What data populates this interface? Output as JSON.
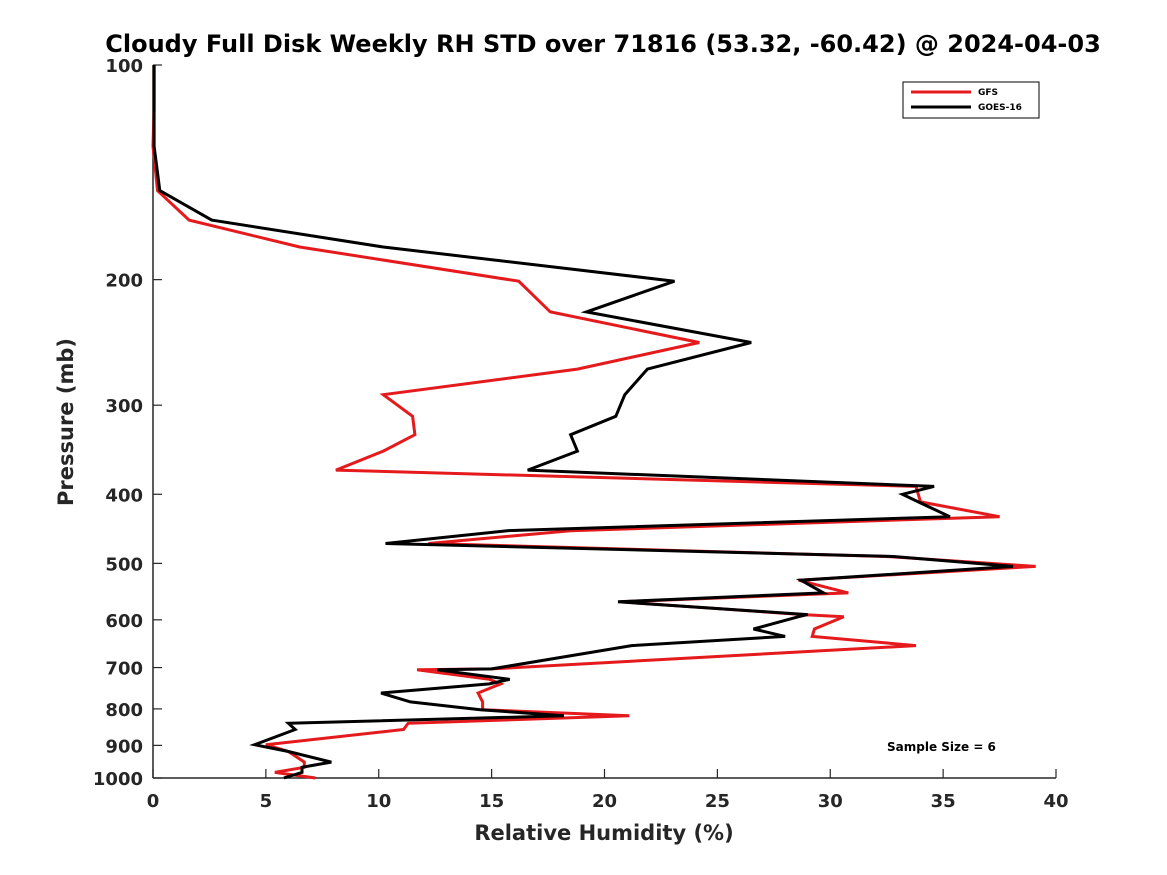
{
  "chart_data": {
    "type": "line",
    "title": "Cloudy Full Disk Weekly RH STD over 71816 (53.32, -60.42) @ 2024-04-03",
    "xlabel": "Relative Humidity (%)",
    "ylabel": "Pressure (mb)",
    "xlim": [
      0,
      40
    ],
    "ylim": [
      100,
      1000
    ],
    "y_scale": "log",
    "y_reversed": true,
    "x_ticks": [
      "0",
      "5",
      "10",
      "15",
      "20",
      "25",
      "30",
      "35",
      "40"
    ],
    "y_ticks": [
      "100",
      "200",
      "300",
      "400",
      "500",
      "600",
      "700",
      "800",
      "900",
      "1000"
    ],
    "grid": false,
    "legend_position": "top-right",
    "annotation": "Sample Size = 6",
    "series": [
      {
        "name": "GFS",
        "color": "#e41a1c",
        "points": [
          [
            0.05,
            100
          ],
          [
            0.05,
            115
          ],
          [
            0.0,
            130
          ],
          [
            0.2,
            150
          ],
          [
            1.6,
            165
          ],
          [
            6.5,
            180
          ],
          [
            16.2,
            201
          ],
          [
            17.6,
            222
          ],
          [
            24.2,
            245
          ],
          [
            18.8,
            267
          ],
          [
            10.2,
            290
          ],
          [
            11.5,
            311
          ],
          [
            11.6,
            330
          ],
          [
            10.2,
            348
          ],
          [
            8.1,
            370
          ],
          [
            33.8,
            390
          ],
          [
            33.9,
            400
          ],
          [
            34.0,
            410
          ],
          [
            37.5,
            430
          ],
          [
            18.5,
            450
          ],
          [
            12.2,
            469
          ],
          [
            32.5,
            489
          ],
          [
            39.1,
            505
          ],
          [
            28.6,
            528
          ],
          [
            30.8,
            550
          ],
          [
            20.7,
            566
          ],
          [
            28.8,
            590
          ],
          [
            30.6,
            594
          ],
          [
            29.3,
            618
          ],
          [
            29.2,
            633
          ],
          [
            33.8,
            652
          ],
          [
            15.0,
            703
          ],
          [
            11.7,
            705
          ],
          [
            14.9,
            727
          ],
          [
            15.4,
            738
          ],
          [
            14.4,
            760
          ],
          [
            14.6,
            782
          ],
          [
            14.6,
            802
          ],
          [
            21.1,
            818
          ],
          [
            11.3,
            838
          ],
          [
            11.1,
            855
          ],
          [
            5.0,
            898
          ],
          [
            6.0,
            918
          ],
          [
            6.7,
            950
          ],
          [
            6.7,
            966
          ],
          [
            5.4,
            982
          ],
          [
            7.2,
            1000
          ]
        ]
      },
      {
        "name": "GOES-16",
        "color": "#000000",
        "points": [
          [
            0.05,
            100
          ],
          [
            0.05,
            115
          ],
          [
            0.05,
            130
          ],
          [
            0.3,
            150
          ],
          [
            2.6,
            165
          ],
          [
            10.2,
            180
          ],
          [
            23.1,
            201
          ],
          [
            19.2,
            222
          ],
          [
            26.5,
            245
          ],
          [
            21.9,
            267
          ],
          [
            20.9,
            290
          ],
          [
            20.5,
            311
          ],
          [
            18.5,
            330
          ],
          [
            18.8,
            348
          ],
          [
            16.6,
            370
          ],
          [
            34.6,
            390
          ],
          [
            33.2,
            400
          ],
          [
            33.9,
            410
          ],
          [
            35.3,
            430
          ],
          [
            15.7,
            450
          ],
          [
            10.3,
            469
          ],
          [
            32.8,
            489
          ],
          [
            38.1,
            505
          ],
          [
            28.7,
            528
          ],
          [
            29.7,
            550
          ],
          [
            20.6,
            566
          ],
          [
            29.0,
            590
          ],
          [
            28.6,
            594
          ],
          [
            26.6,
            618
          ],
          [
            28.0,
            633
          ],
          [
            21.2,
            652
          ],
          [
            15.0,
            703
          ],
          [
            12.6,
            705
          ],
          [
            15.8,
            727
          ],
          [
            14.9,
            738
          ],
          [
            10.1,
            760
          ],
          [
            11.4,
            782
          ],
          [
            14.5,
            802
          ],
          [
            18.2,
            818
          ],
          [
            6.0,
            838
          ],
          [
            6.3,
            855
          ],
          [
            4.5,
            898
          ],
          [
            6.0,
            918
          ],
          [
            7.9,
            950
          ],
          [
            6.6,
            966
          ],
          [
            6.6,
            982
          ],
          [
            5.8,
            1000
          ]
        ]
      }
    ]
  }
}
